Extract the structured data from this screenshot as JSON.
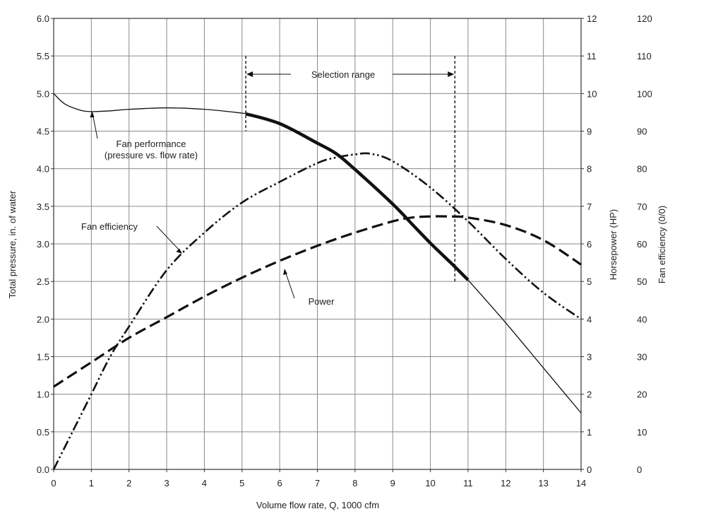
{
  "chart_data": {
    "type": "line",
    "title": "",
    "xlabel": "Volume flow rate, Q, 1000 cfm",
    "ylabel_left": "Total pressure, in. of water",
    "ylabel_right_1": "Horsepower (HP)",
    "ylabel_right_2": "Fan efficiency (0/0)",
    "xlim": [
      0,
      14
    ],
    "ylim_left": [
      0,
      6
    ],
    "ylim_right_1": [
      0,
      12
    ],
    "ylim_right_2": [
      0,
      120
    ],
    "x_ticks": [
      "0",
      "1",
      "2",
      "3",
      "4",
      "5",
      "6",
      "7",
      "8",
      "9",
      "10",
      "11",
      "12",
      "13",
      "14"
    ],
    "y_left_ticks": [
      "0.0",
      "0.5",
      "1.0",
      "1.5",
      "2.0",
      "2.5",
      "3.0",
      "3.5",
      "4.0",
      "4.5",
      "5.0",
      "5.5",
      "6.0"
    ],
    "y_right_1_ticks": [
      "0",
      "1",
      "2",
      "3",
      "4",
      "5",
      "6",
      "7",
      "8",
      "9",
      "10",
      "11",
      "12"
    ],
    "y_right_2_ticks": [
      "0",
      "10",
      "20",
      "30",
      "40",
      "50",
      "60",
      "70",
      "80",
      "90",
      "100",
      "110",
      "120"
    ],
    "grid": true,
    "legend": "none",
    "series": [
      {
        "axis": "pressure",
        "x": [
          0,
          0.3,
          0.7,
          1.0,
          1.5,
          2.0,
          3.0,
          4.0,
          5.0,
          5.1,
          6.0,
          7.0,
          7.5,
          8.0,
          9.0,
          9.5,
          10.0,
          10.6,
          11.0,
          12.0,
          13.0,
          14.0
        ],
        "y": [
          5.0,
          4.86,
          4.78,
          4.76,
          4.77,
          4.79,
          4.81,
          4.79,
          4.74,
          4.73,
          4.6,
          4.34,
          4.2,
          3.99,
          3.53,
          3.27,
          3.01,
          2.72,
          2.52,
          1.95,
          1.35,
          0.75
        ]
      },
      {
        "axis": "efficiency",
        "x": [
          0,
          0.5,
          1.0,
          1.5,
          2.0,
          3.0,
          4.0,
          5.0,
          6.0,
          7.0,
          7.5,
          8.0,
          8.4,
          9.0,
          10.0,
          11.0,
          12.0,
          13.0,
          14.0
        ],
        "y": [
          0,
          10,
          20,
          30,
          38,
          53,
          63,
          71,
          76.5,
          81.5,
          83,
          83.8,
          84,
          82,
          75,
          66,
          56,
          47,
          40
        ]
      },
      {
        "axis": "power",
        "x": [
          0,
          1,
          2,
          3,
          4,
          5,
          6,
          7,
          8,
          9,
          9.5,
          10,
          10.5,
          11,
          12,
          13,
          14
        ],
        "y": [
          2.2,
          2.85,
          3.5,
          4.05,
          4.6,
          5.1,
          5.55,
          5.95,
          6.3,
          6.6,
          6.7,
          6.73,
          6.73,
          6.7,
          6.5,
          6.1,
          5.45
        ]
      }
    ],
    "selection_range": {
      "x_start": 5.1,
      "x_end": 10.65
    },
    "annotations": {
      "selection_range": "Selection range",
      "fan_performance_line1": "Fan performance",
      "fan_performance_line2": "(pressure vs. flow rate)",
      "fan_efficiency": "Fan efficiency",
      "power": "Power"
    }
  }
}
